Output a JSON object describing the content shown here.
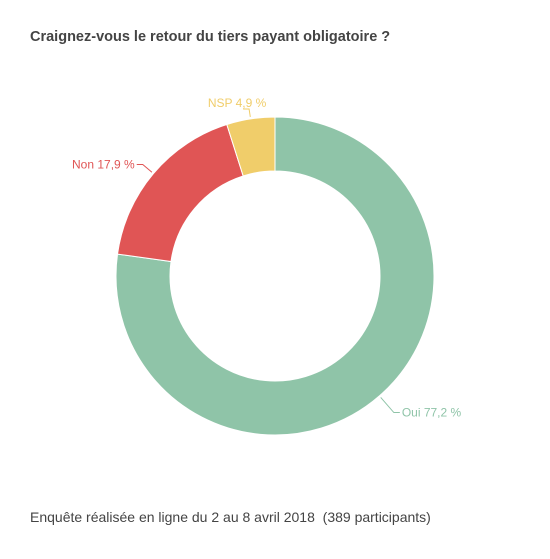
{
  "chart_data": {
    "type": "pie",
    "variant": "donut",
    "title": "Craignez-vous le retour du tiers payant obligatoire ?",
    "slices": [
      {
        "label": "Oui",
        "value": 77.2,
        "display": "Oui 77,2 %",
        "color": "#8fc4a8"
      },
      {
        "label": "Non",
        "value": 17.9,
        "display": "Non 17,9 %",
        "color": "#e05555"
      },
      {
        "label": "NSP",
        "value": 4.9,
        "display": "NSP 4,9 %",
        "color": "#f0cd6a"
      }
    ],
    "start": "12 o'clock",
    "direction": "clockwise"
  },
  "footnote": "Enquête réalisée en ligne du 2 au 8 avril 2018  (389 participants)"
}
